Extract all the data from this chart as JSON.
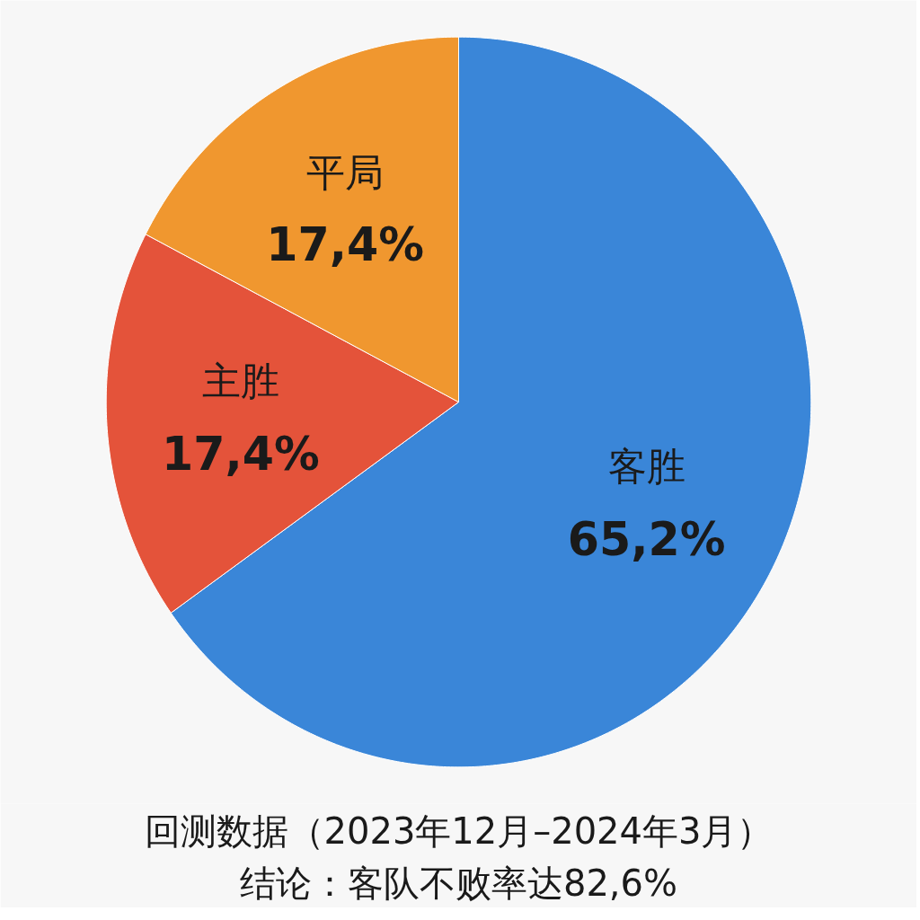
{
  "chart_data": {
    "type": "pie",
    "title": "回测数据（2023年12月–2024年3月）",
    "annotations": [
      "结论：客队不败率达82,6%"
    ],
    "categories": [
      "客胜",
      "主胜",
      "平局"
    ],
    "values": [
      65.2,
      17.4,
      17.4
    ],
    "value_labels": [
      "65,2%",
      "17,4%",
      "17,4%"
    ],
    "colors": [
      "#3a86d8",
      "#e4533a",
      "#f0972f"
    ]
  }
}
